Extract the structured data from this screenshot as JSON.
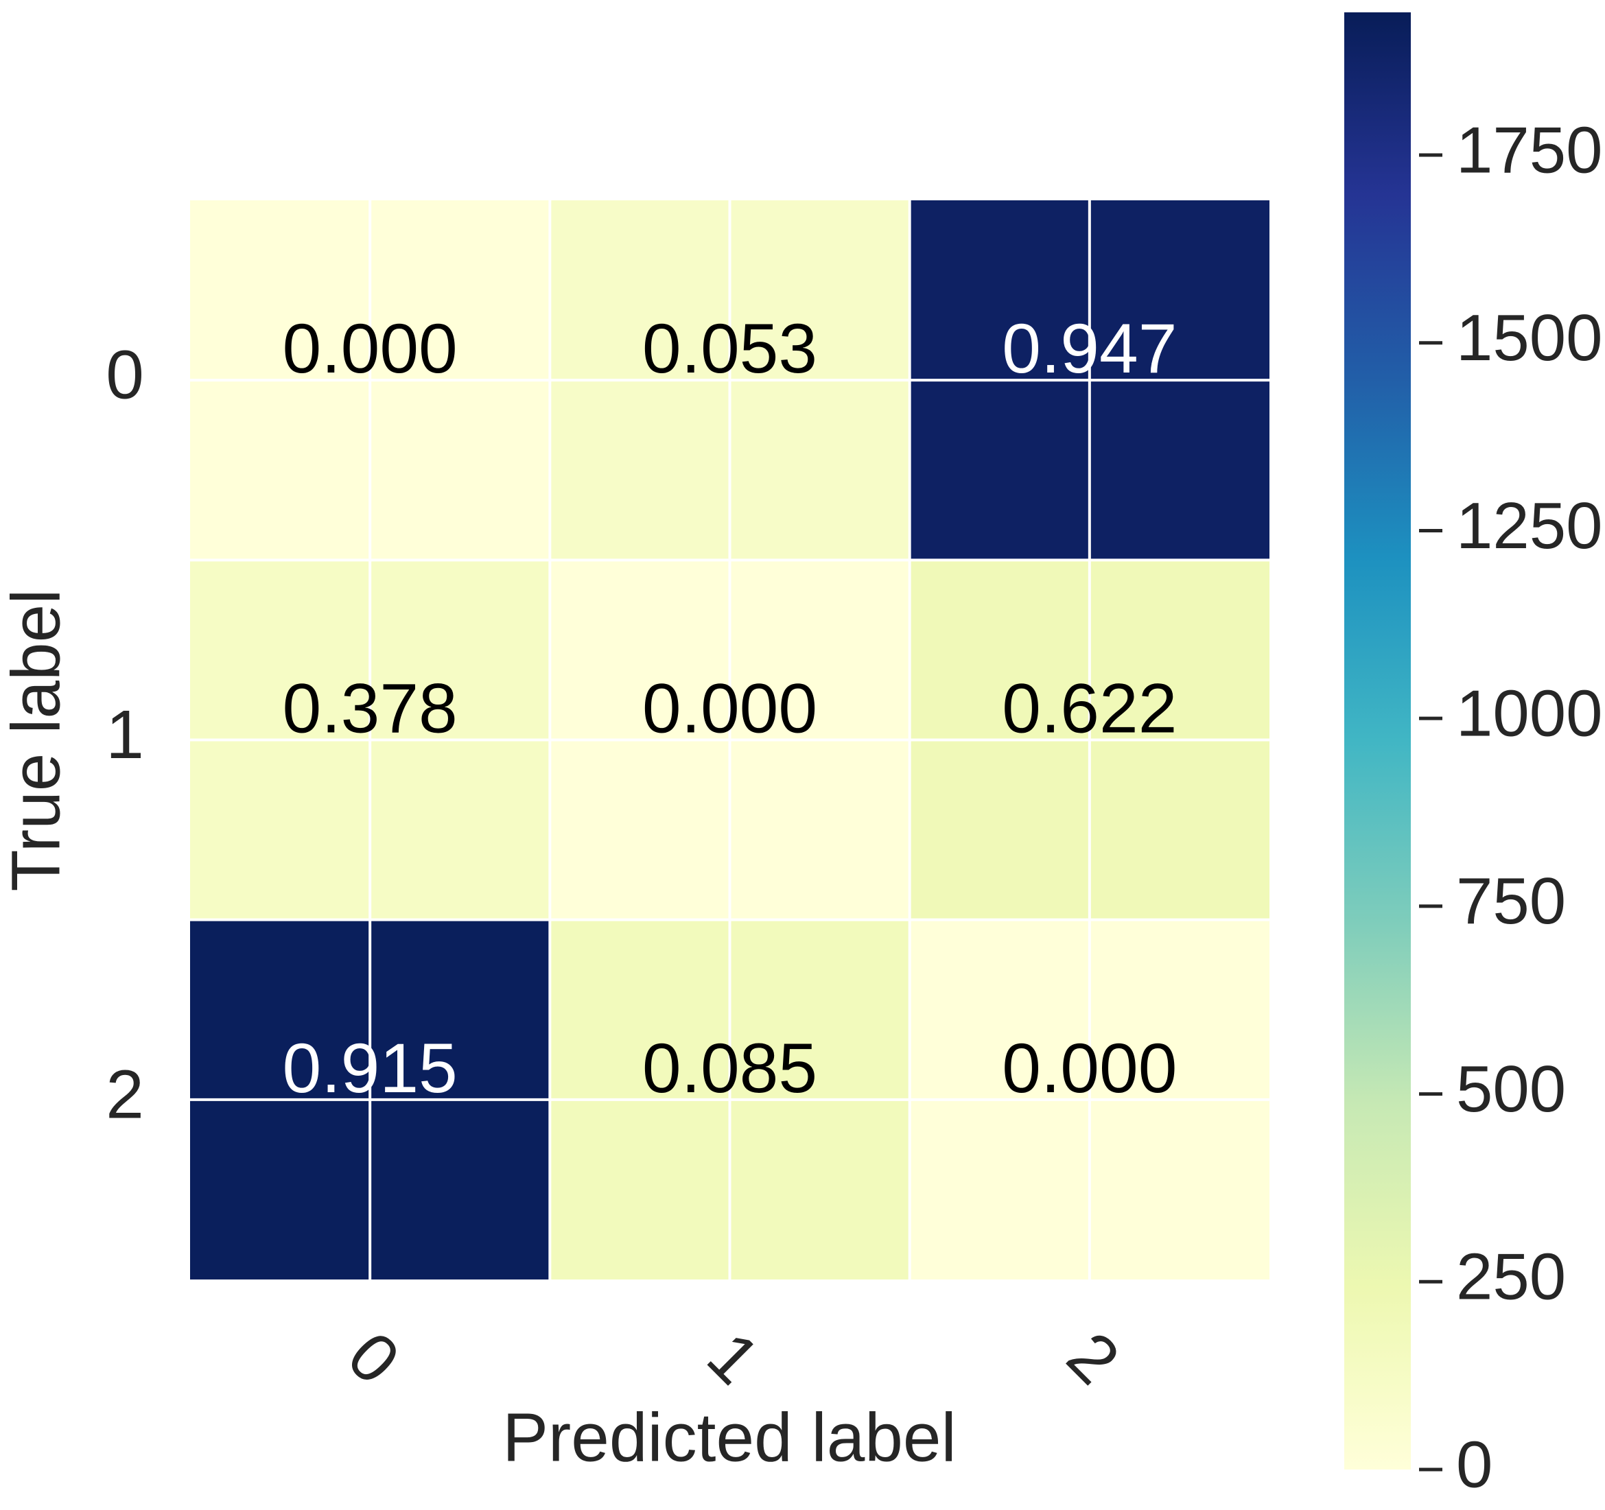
{
  "chart_data": {
    "type": "heatmap",
    "x_label": "Predicted label",
    "y_label": "True label",
    "x_categories": [
      "0",
      "1",
      "2"
    ],
    "y_categories": [
      "0",
      "1",
      "2"
    ],
    "values": [
      [
        0,
        0.053,
        0.947
      ],
      [
        0.378,
        0,
        0.622
      ],
      [
        0.915,
        0.085,
        0
      ]
    ],
    "value_labels": [
      [
        "0.000",
        "0.053",
        "0.947"
      ],
      [
        "0.378",
        "0.000",
        "0.622"
      ],
      [
        "0.915",
        "0.085",
        "0.000"
      ]
    ],
    "counts": [
      [
        0,
        106,
        1894
      ],
      [
        121,
        0,
        199
      ],
      [
        1922,
        178,
        0
      ]
    ],
    "colorbar": {
      "lim": [
        0,
        1940
      ],
      "ticks": [
        0,
        250,
        500,
        750,
        1000,
        1250,
        1500,
        1750
      ]
    },
    "colormap": [
      "#ffffd9",
      "#edf8b1",
      "#c7e9b4",
      "#7fcdbb",
      "#41b6c4",
      "#1d91c0",
      "#225ea8",
      "#253494",
      "#081d58"
    ],
    "grid": true
  }
}
